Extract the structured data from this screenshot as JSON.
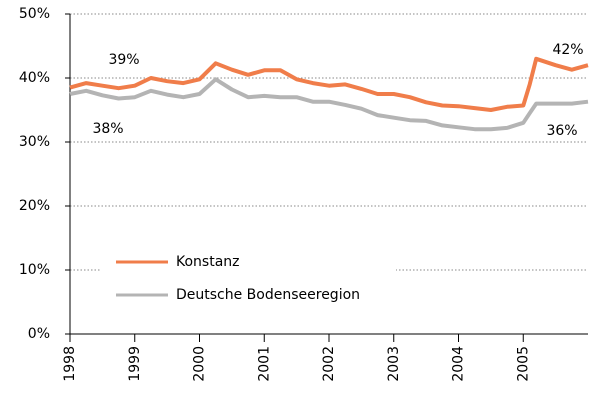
{
  "chart_data": {
    "type": "line",
    "x": [
      1998.0,
      1998.25,
      1998.5,
      1998.75,
      1999.0,
      1999.25,
      1999.5,
      1999.75,
      2000.0,
      2000.25,
      2000.5,
      2000.75,
      2001.0,
      2001.25,
      2001.5,
      2001.75,
      2002.0,
      2002.25,
      2002.5,
      2002.75,
      2003.0,
      2003.25,
      2003.5,
      2003.75,
      2004.0,
      2004.25,
      2004.5,
      2004.75,
      2005.0,
      2005.1,
      2005.2,
      2005.5,
      2005.75,
      2006.0
    ],
    "series": [
      {
        "name": "Konstanz",
        "color": "#f07d4a",
        "values": [
          38.5,
          39.2,
          38.8,
          38.4,
          38.8,
          40,
          39.5,
          39.2,
          39.8,
          42.3,
          41.3,
          40.5,
          41.2,
          41.2,
          39.8,
          39.2,
          38.8,
          39,
          38.3,
          37.5,
          37.5,
          37,
          36.2,
          35.7,
          35.6,
          35.3,
          35,
          35.5,
          35.7,
          39,
          43,
          42,
          41.3,
          42
        ]
      },
      {
        "name": "Deutsche Bodenseeregion",
        "color": "#b4b4b4",
        "values": [
          37.5,
          38,
          37.3,
          36.8,
          37,
          38,
          37.4,
          37,
          37.5,
          39.8,
          38.2,
          37,
          37.2,
          37,
          37,
          36.3,
          36.3,
          35.8,
          35.2,
          34.2,
          33.8,
          33.4,
          33.3,
          32.6,
          32.3,
          32,
          32,
          32.2,
          33,
          34.5,
          36,
          36,
          36,
          36.3
        ]
      }
    ],
    "xlim": [
      1998,
      2006
    ],
    "xticks": [
      1998,
      1999,
      2000,
      2001,
      2002,
      2003,
      2004,
      2005
    ],
    "ylim": [
      0,
      50
    ],
    "yticks": [
      {
        "value": 0,
        "label": "0%"
      },
      {
        "value": 10,
        "label": "10%"
      },
      {
        "value": 20,
        "label": "20%"
      },
      {
        "value": 30,
        "label": "30%"
      },
      {
        "value": 40,
        "label": "40%"
      },
      {
        "value": 50,
        "label": "50%"
      }
    ],
    "grid": true,
    "annotations": [
      "39%",
      "38%",
      "42%",
      "36%"
    ]
  }
}
